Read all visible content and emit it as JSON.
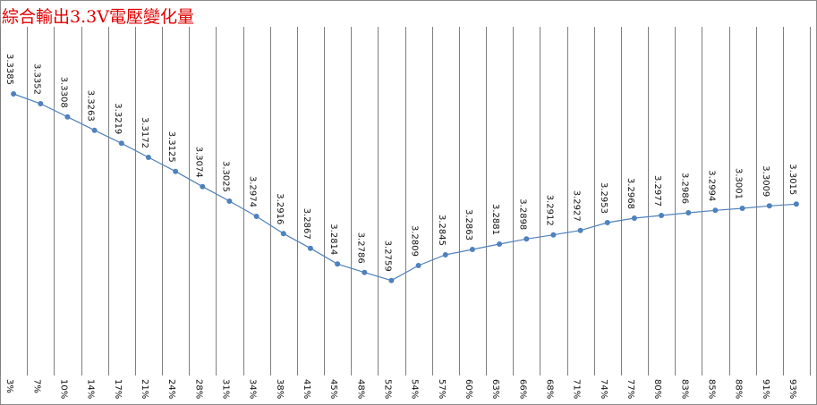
{
  "title": "綜合輸出3.3V電壓變化量",
  "colors": {
    "title": "#e00000",
    "series": "#4f81bd",
    "grid": "#7f7f7f"
  },
  "chart_data": {
    "type": "line",
    "title": "綜合輸出3.3V電壓變化量",
    "categories": [
      "3%",
      "7%",
      "10%",
      "14%",
      "17%",
      "21%",
      "24%",
      "28%",
      "31%",
      "34%",
      "38%",
      "41%",
      "45%",
      "48%",
      "52%",
      "54%",
      "57%",
      "60%",
      "63%",
      "66%",
      "68%",
      "71%",
      "74%",
      "77%",
      "80%",
      "83%",
      "85%",
      "88%",
      "91%",
      "93%"
    ],
    "series": [
      {
        "values": [
          3.3385,
          3.3352,
          3.3308,
          3.3263,
          3.3219,
          3.3172,
          3.3125,
          3.3074,
          3.3025,
          3.2974,
          3.2916,
          3.2867,
          3.2814,
          3.2786,
          3.2759,
          3.2809,
          3.2845,
          3.2863,
          3.2881,
          3.2898,
          3.2912,
          3.2927,
          3.2953,
          3.2968,
          3.2977,
          3.2986,
          3.2994,
          3.3001,
          3.3009,
          3.3015
        ]
      }
    ],
    "data_labels": [
      "3.3385",
      "3.3352",
      "3.3308",
      "3.3263",
      "3.3219",
      "3.3172",
      "3.3125",
      "3.3074",
      "3.3025",
      "3.2974",
      "3.2916",
      "3.2867",
      "3.2814",
      "3.2786",
      "3.2759",
      "3.2809",
      "3.2845",
      "3.2863",
      "3.2881",
      "3.2898",
      "3.2912",
      "3.2927",
      "3.2953",
      "3.2968",
      "3.2977",
      "3.2986",
      "3.2994",
      "3.3001",
      "3.3009",
      "3.3015"
    ],
    "xlabel": "",
    "ylabel": "",
    "ylim": [
      3.244,
      3.361
    ],
    "grid": "vertical",
    "legend": "none"
  }
}
